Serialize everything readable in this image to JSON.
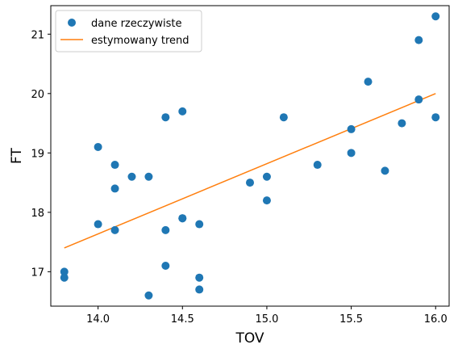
{
  "chart_data": {
    "type": "scatter",
    "xlabel": "TOV",
    "ylabel": "FT",
    "xlim": [
      13.72,
      16.08
    ],
    "ylim": [
      16.42,
      21.48
    ],
    "xticks": [
      "14.0",
      "14.5",
      "15.0",
      "15.5",
      "16.0"
    ],
    "yticks": [
      "17",
      "18",
      "19",
      "20",
      "21"
    ],
    "grid": false,
    "legend_position": "top-left",
    "scatter": {
      "name": "dane rzeczywiste",
      "color": "#1f77b4",
      "points": [
        [
          13.8,
          17.0
        ],
        [
          13.8,
          16.9
        ],
        [
          14.0,
          19.1
        ],
        [
          14.0,
          17.8
        ],
        [
          14.1,
          18.8
        ],
        [
          14.1,
          18.4
        ],
        [
          14.1,
          17.7
        ],
        [
          14.2,
          18.6
        ],
        [
          14.3,
          18.6
        ],
        [
          14.3,
          16.6
        ],
        [
          14.4,
          19.6
        ],
        [
          14.4,
          17.7
        ],
        [
          14.4,
          17.1
        ],
        [
          14.5,
          19.7
        ],
        [
          14.5,
          17.9
        ],
        [
          14.5,
          17.9
        ],
        [
          14.6,
          17.8
        ],
        [
          14.6,
          16.9
        ],
        [
          14.6,
          16.7
        ],
        [
          14.9,
          18.5
        ],
        [
          15.0,
          18.6
        ],
        [
          15.0,
          18.2
        ],
        [
          15.1,
          19.6
        ],
        [
          15.3,
          18.8
        ],
        [
          15.5,
          19.4
        ],
        [
          15.5,
          19.0
        ],
        [
          15.6,
          20.2
        ],
        [
          15.7,
          18.7
        ],
        [
          15.8,
          19.5
        ],
        [
          15.9,
          20.9
        ],
        [
          15.9,
          19.9
        ],
        [
          16.0,
          21.3
        ],
        [
          16.0,
          19.6
        ]
      ]
    },
    "trend": {
      "name": "estymowany trend",
      "color": "#ff7f0e",
      "x": [
        13.8,
        16.0
      ],
      "y": [
        17.4,
        20.0
      ]
    }
  }
}
